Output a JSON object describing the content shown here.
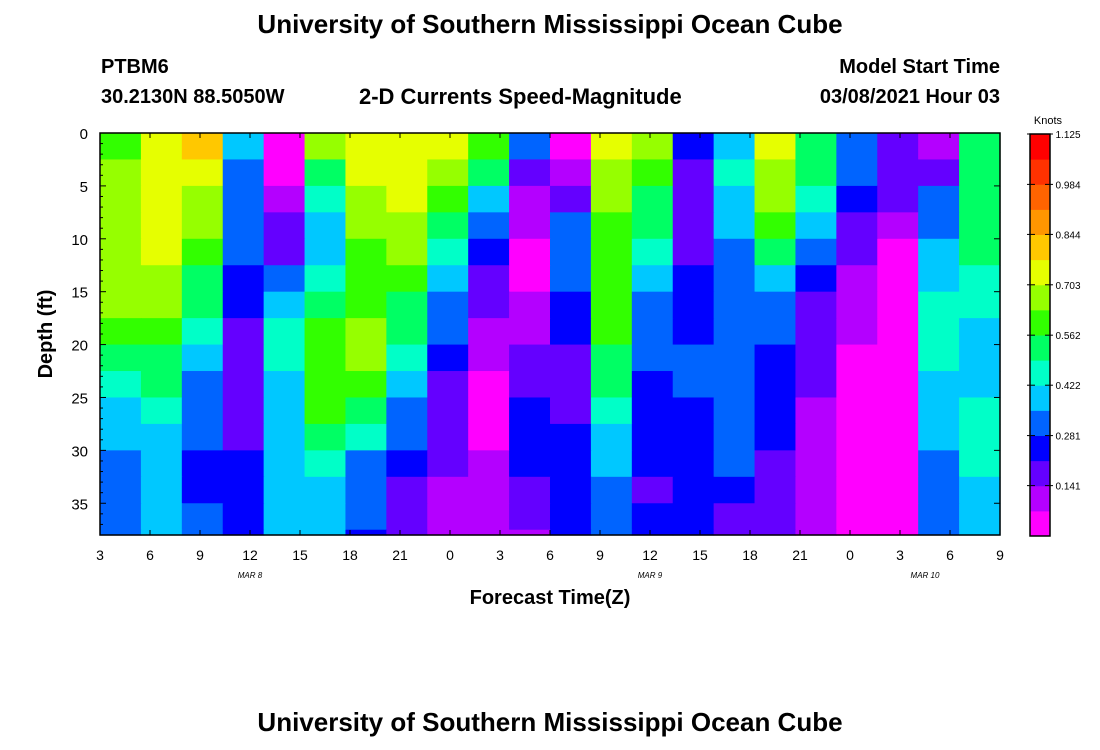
{
  "titles": {
    "top": "University of Southern Mississippi Ocean Cube",
    "bottom": "University of Southern Mississippi Ocean Cube"
  },
  "header": {
    "station_id": "PTBM6",
    "coords": "30.2130N 88.5050W",
    "plot_title": "2-D Currents Speed-Magnitude",
    "model_label": "Model Start Time",
    "model_time": "03/08/2021 Hour 03"
  },
  "colors": {
    "scale": [
      "#ff00ff",
      "#b400ff",
      "#6400ff",
      "#0000ff",
      "#0064ff",
      "#00c8ff",
      "#00ffc8",
      "#00ff64",
      "#32ff00",
      "#96ff00",
      "#e6ff00",
      "#ffc800",
      "#ff9600",
      "#ff6400",
      "#ff3200",
      "#ff0000"
    ]
  },
  "chart_data": {
    "type": "heatmap",
    "title": "2-D Currents Speed-Magnitude",
    "xlabel": "Forecast Time(Z)",
    "ylabel": "Depth (ft)",
    "x_range": [
      0,
      54
    ],
    "y_range": [
      0,
      38
    ],
    "y_inverted": true,
    "x_tick_labels": [
      "3",
      "6",
      "9",
      "12",
      "15",
      "18",
      "21",
      "0",
      "3",
      "6",
      "9",
      "12",
      "15",
      "18",
      "21",
      "0",
      "3",
      "6",
      "9"
    ],
    "y_ticks": [
      0,
      5,
      10,
      15,
      20,
      25,
      30,
      35
    ],
    "date_labels": [
      {
        "text": "MAR 8",
        "hour": 9
      },
      {
        "text": "MAR 9",
        "hour": 33
      },
      {
        "text": "MAR 10",
        "hour": 49.5
      }
    ],
    "colorbar": {
      "label": "Knots",
      "ticks": [
        1.125,
        0.984,
        0.844,
        0.703,
        0.562,
        0.422,
        0.281,
        0.141
      ],
      "range": [
        0,
        1.125
      ]
    },
    "depths": [
      0,
      2.5,
      5,
      7.5,
      10,
      12.5,
      15,
      17.5,
      20,
      22.5,
      25,
      27.5,
      30,
      32.5,
      35,
      37.5
    ],
    "speed_rows": [
      [
        0.62,
        0.72,
        0.78,
        0.4,
        0.05,
        0.65,
        0.72,
        0.75,
        0.72,
        0.6,
        0.3,
        0.05,
        0.72,
        0.65,
        0.25,
        0.42,
        0.72,
        0.55,
        0.35,
        0.15,
        0.1,
        0.55
      ],
      [
        0.65,
        0.75,
        0.75,
        0.35,
        0.05,
        0.55,
        0.72,
        0.75,
        0.7,
        0.52,
        0.2,
        0.1,
        0.7,
        0.6,
        0.2,
        0.45,
        0.7,
        0.5,
        0.3,
        0.15,
        0.2,
        0.55
      ],
      [
        0.68,
        0.75,
        0.7,
        0.3,
        0.1,
        0.45,
        0.7,
        0.72,
        0.62,
        0.4,
        0.12,
        0.2,
        0.68,
        0.55,
        0.18,
        0.4,
        0.65,
        0.45,
        0.25,
        0.15,
        0.3,
        0.5
      ],
      [
        0.7,
        0.75,
        0.65,
        0.3,
        0.15,
        0.4,
        0.65,
        0.7,
        0.55,
        0.3,
        0.1,
        0.3,
        0.62,
        0.5,
        0.18,
        0.38,
        0.58,
        0.4,
        0.2,
        0.1,
        0.35,
        0.5
      ],
      [
        0.7,
        0.72,
        0.6,
        0.3,
        0.2,
        0.4,
        0.6,
        0.65,
        0.45,
        0.25,
        0.05,
        0.35,
        0.6,
        0.45,
        0.2,
        0.35,
        0.5,
        0.3,
        0.15,
        0.05,
        0.4,
        0.5
      ],
      [
        0.7,
        0.7,
        0.55,
        0.25,
        0.3,
        0.45,
        0.6,
        0.6,
        0.4,
        0.2,
        0.05,
        0.3,
        0.6,
        0.4,
        0.22,
        0.3,
        0.4,
        0.25,
        0.1,
        0.05,
        0.4,
        0.45
      ],
      [
        0.68,
        0.65,
        0.5,
        0.25,
        0.4,
        0.55,
        0.62,
        0.55,
        0.35,
        0.15,
        0.1,
        0.25,
        0.62,
        0.35,
        0.25,
        0.3,
        0.35,
        0.2,
        0.1,
        0.05,
        0.45,
        0.45
      ],
      [
        0.62,
        0.6,
        0.45,
        0.2,
        0.45,
        0.6,
        0.65,
        0.52,
        0.3,
        0.1,
        0.12,
        0.22,
        0.6,
        0.3,
        0.28,
        0.3,
        0.3,
        0.2,
        0.08,
        0.05,
        0.45,
        0.4
      ],
      [
        0.55,
        0.55,
        0.4,
        0.2,
        0.45,
        0.62,
        0.65,
        0.45,
        0.25,
        0.08,
        0.15,
        0.2,
        0.55,
        0.3,
        0.3,
        0.3,
        0.28,
        0.15,
        0.05,
        0.05,
        0.45,
        0.4
      ],
      [
        0.48,
        0.52,
        0.35,
        0.2,
        0.4,
        0.62,
        0.6,
        0.4,
        0.2,
        0.05,
        0.2,
        0.2,
        0.5,
        0.28,
        0.3,
        0.3,
        0.25,
        0.15,
        0.05,
        0.05,
        0.42,
        0.42
      ],
      [
        0.42,
        0.45,
        0.32,
        0.2,
        0.38,
        0.6,
        0.55,
        0.35,
        0.18,
        0.05,
        0.25,
        0.2,
        0.45,
        0.28,
        0.28,
        0.32,
        0.25,
        0.12,
        0.05,
        0.05,
        0.4,
        0.45
      ],
      [
        0.38,
        0.42,
        0.3,
        0.2,
        0.4,
        0.55,
        0.45,
        0.3,
        0.18,
        0.05,
        0.25,
        0.25,
        0.42,
        0.25,
        0.25,
        0.3,
        0.22,
        0.12,
        0.05,
        0.05,
        0.4,
        0.45
      ],
      [
        0.35,
        0.4,
        0.28,
        0.25,
        0.4,
        0.45,
        0.35,
        0.25,
        0.15,
        0.1,
        0.25,
        0.25,
        0.4,
        0.22,
        0.25,
        0.3,
        0.2,
        0.12,
        0.05,
        0.05,
        0.35,
        0.45
      ],
      [
        0.33,
        0.4,
        0.28,
        0.25,
        0.38,
        0.4,
        0.3,
        0.2,
        0.12,
        0.1,
        0.2,
        0.22,
        0.35,
        0.2,
        0.22,
        0.25,
        0.18,
        0.1,
        0.05,
        0.05,
        0.3,
        0.42
      ],
      [
        0.33,
        0.4,
        0.3,
        0.25,
        0.38,
        0.4,
        0.3,
        0.18,
        0.1,
        0.1,
        0.15,
        0.22,
        0.3,
        0.22,
        0.25,
        0.2,
        0.18,
        0.1,
        0.05,
        0.05,
        0.3,
        0.4
      ],
      [
        0.33,
        0.4,
        0.3,
        0.25,
        0.38,
        0.4,
        0.28,
        0.15,
        0.1,
        0.1,
        0.12,
        0.22,
        0.3,
        0.22,
        0.25,
        0.2,
        0.18,
        0.1,
        0.05,
        0.05,
        0.3,
        0.4
      ]
    ]
  }
}
